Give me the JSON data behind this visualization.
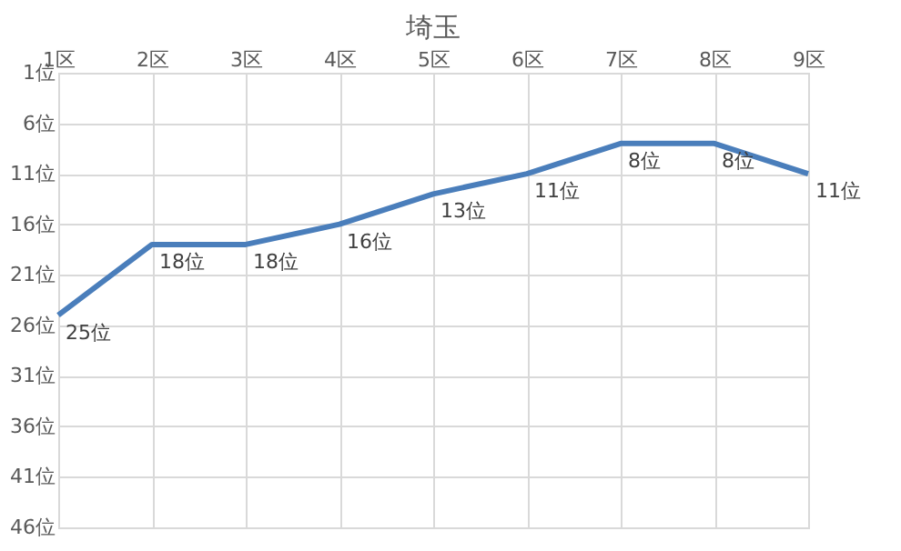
{
  "chart_data": {
    "type": "line",
    "title": "埼玉",
    "categories": [
      "1区",
      "2区",
      "3区",
      "4区",
      "5区",
      "6区",
      "7区",
      "8区",
      "9区"
    ],
    "series": [
      {
        "color": "#4a7ebb",
        "values": [
          25,
          18,
          18,
          16,
          13,
          11,
          8,
          8,
          11
        ],
        "value_labels": [
          "25位",
          "18位",
          "18位",
          "16位",
          "13位",
          "11位",
          "8位",
          "8位",
          "11位"
        ]
      }
    ],
    "ylim": [
      46,
      1
    ],
    "yticks": [
      {
        "value": 1,
        "label": "1位"
      },
      {
        "value": 6,
        "label": "6位"
      },
      {
        "value": 11,
        "label": "11位"
      },
      {
        "value": 16,
        "label": "16位"
      },
      {
        "value": 21,
        "label": "21位"
      },
      {
        "value": 26,
        "label": "26位"
      },
      {
        "value": 31,
        "label": "31位"
      },
      {
        "value": 36,
        "label": "36位"
      },
      {
        "value": 41,
        "label": "41位"
      },
      {
        "value": 46,
        "label": "46位"
      }
    ],
    "grid": true,
    "marker": "none",
    "line_style": "solid",
    "legend": false
  }
}
